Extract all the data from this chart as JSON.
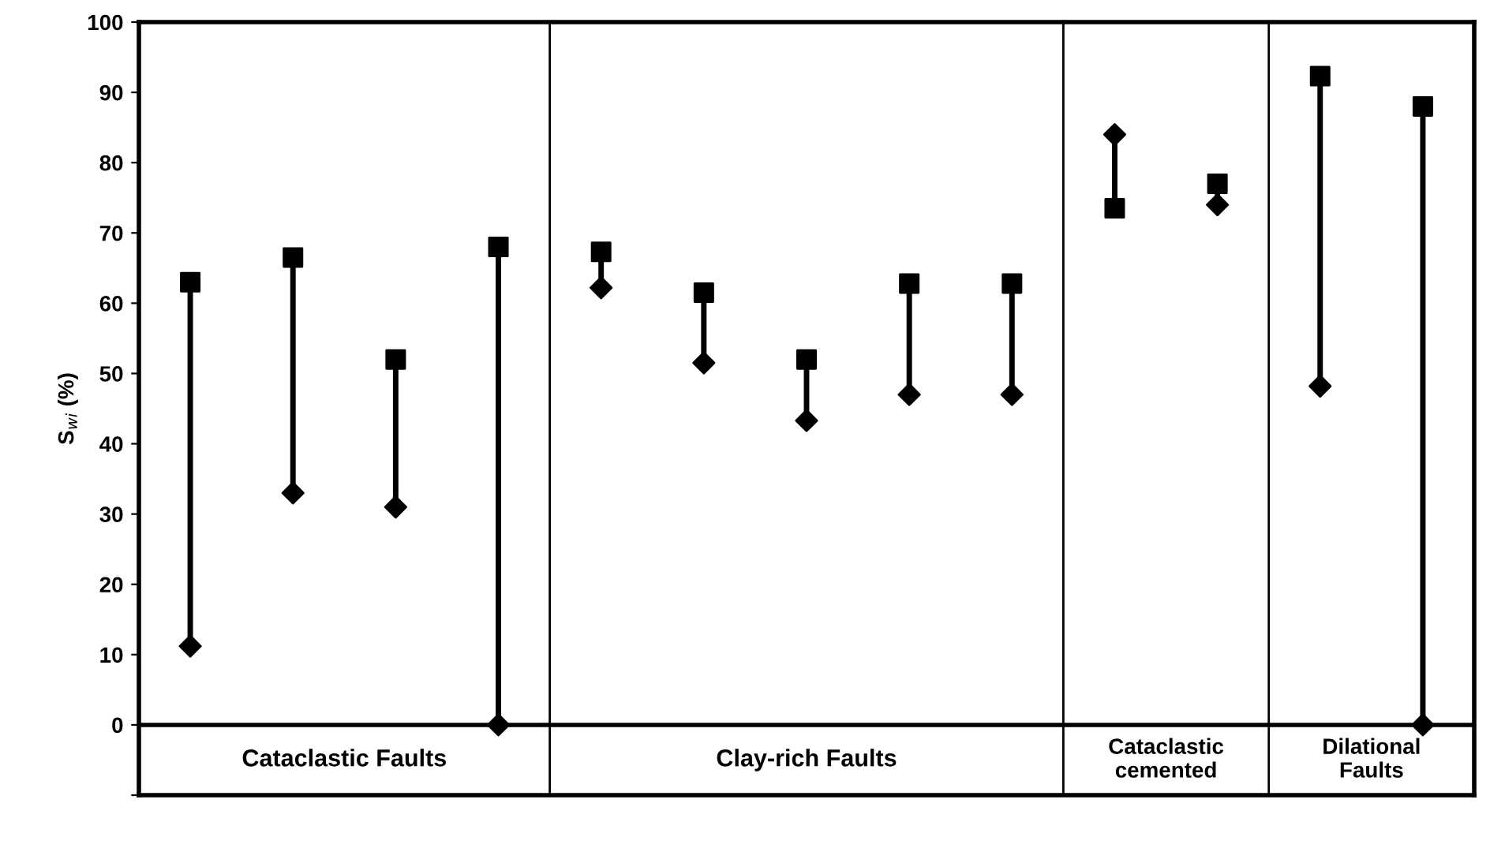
{
  "chart_data": {
    "type": "scatter",
    "ylabel": "S$_{wi}$ (%)",
    "categories": [
      null,
      null,
      null,
      null,
      null,
      null,
      null,
      null,
      null,
      null,
      null,
      null,
      null
    ],
    "series": [
      {
        "color": "#000000",
        "marker": "square",
        "values": [
          63,
          66.5,
          52,
          68,
          null,
          null,
          null,
          null,
          null,
          null,
          null,
          null,
          null
        ]
      },
      {
        "color": "#000000",
        "marker": "diamond",
        "values": [
          11.2,
          33,
          31,
          0,
          null,
          null,
          null,
          null,
          null,
          null,
          null,
          null,
          null
        ]
      },
      {
        "color": "#000000",
        "marker": "square",
        "values": [
          null,
          null,
          null,
          null,
          67.3,
          61.5,
          52,
          62.8,
          62.8,
          null,
          null,
          null,
          null
        ]
      },
      {
        "color": "#000000",
        "marker": "diamond",
        "values": [
          null,
          null,
          null,
          null,
          62.2,
          51.5,
          43.3,
          47,
          47,
          null,
          null,
          null,
          null
        ]
      },
      {
        "color": "#000000",
        "marker": "square",
        "values": [
          null,
          null,
          null,
          null,
          null,
          null,
          null,
          null,
          null,
          73.5,
          77,
          null,
          null
        ]
      },
      {
        "color": "#000000",
        "marker": "diamond",
        "values": [
          null,
          null,
          null,
          null,
          null,
          null,
          null,
          null,
          null,
          84,
          74,
          null,
          null
        ]
      },
      {
        "color": "#000000",
        "marker": "square",
        "values": [
          null,
          null,
          null,
          null,
          null,
          null,
          null,
          null,
          null,
          null,
          null,
          92.3,
          88
        ]
      },
      {
        "color": "#000000",
        "marker": "diamond",
        "values": [
          null,
          null,
          null,
          null,
          null,
          null,
          null,
          null,
          null,
          null,
          null,
          48.2,
          0
        ]
      }
    ],
    "ylim": [
      -10,
      100
    ],
    "yticks": [
      {
        "value": -10,
        "label": null
      },
      0,
      10,
      20,
      30,
      40,
      50,
      60,
      70,
      80,
      90,
      100
    ],
    "annotations": [
      "Cataclastic Faults",
      "Clay-rich Faults",
      "Cataclastic\ncemented",
      "Dilational\nFaults"
    ],
    "tick_labels": "y"
  }
}
